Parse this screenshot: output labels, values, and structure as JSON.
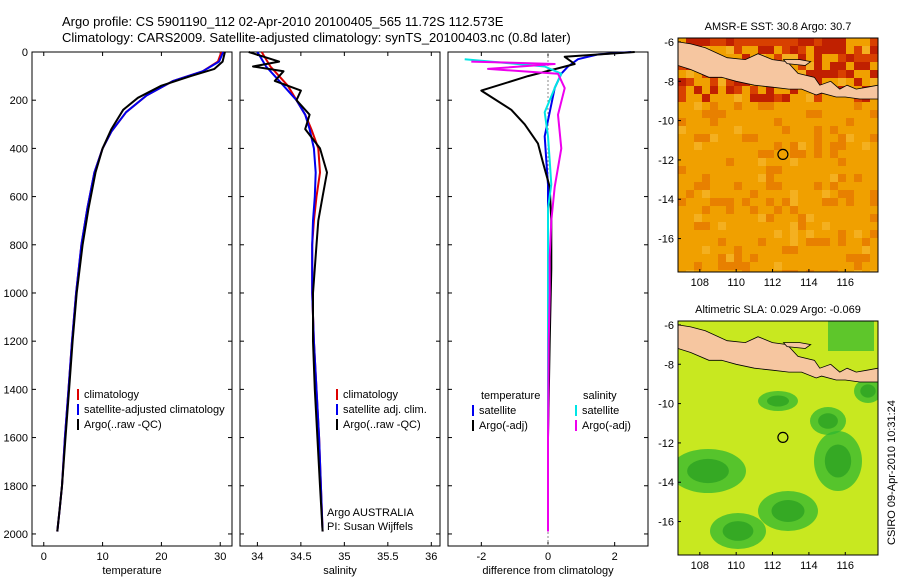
{
  "header": {
    "line1": "Argo profile: CS 5901190_112 02-Apr-2010 20100405_565 11.72S 112.573E",
    "line2": "Climatology: CARS2009. Satellite-adjusted climatology: synTS_20100403.nc (0.8d later)"
  },
  "side_label": "CSIRO 09-Apr-2010 10:31:24",
  "chart_data": [
    {
      "type": "line",
      "panel": "temperature",
      "xlabel": "temperature",
      "ylabel": "",
      "xlim": [
        -2,
        32
      ],
      "ylim": [
        0,
        2050
      ],
      "y_inverted": true,
      "xticks": [
        0,
        10,
        20,
        30
      ],
      "yticks": [
        0,
        200,
        400,
        600,
        800,
        1000,
        1200,
        1400,
        1600,
        1800,
        2000
      ],
      "legend": [
        "climatology",
        "satellite-adjusted climatology",
        "Argo(..raw -QC)"
      ],
      "legend_position": "lower-center",
      "series": [
        {
          "name": "climatology",
          "color": "#dd0000",
          "x": [
            30.2,
            29.6,
            27.0,
            22.0,
            17.5,
            14.0,
            11.5,
            10.0,
            8.6,
            7.4,
            6.4,
            5.5,
            4.8,
            4.2,
            3.6,
            3.1,
            2.7,
            2.3
          ],
          "y": [
            0,
            40,
            80,
            120,
            180,
            250,
            330,
            400,
            500,
            650,
            800,
            1000,
            1200,
            1400,
            1600,
            1800,
            1900,
            1990
          ]
        },
        {
          "name": "satellite-adjusted climatology",
          "color": "#0000ee",
          "x": [
            30.5,
            29.8,
            27.0,
            22.0,
            17.5,
            14.0,
            11.5,
            10.0,
            8.6,
            7.4,
            6.4,
            5.5,
            4.8,
            4.2,
            3.6,
            3.1,
            2.7,
            2.3
          ],
          "y": [
            0,
            40,
            80,
            120,
            180,
            250,
            330,
            400,
            500,
            650,
            800,
            1000,
            1200,
            1400,
            1600,
            1800,
            1900,
            1990
          ]
        },
        {
          "name": "Argo(..raw -QC)",
          "color": "#000000",
          "x": [
            30.8,
            30.4,
            29.0,
            25.0,
            20.0,
            16.0,
            13.5,
            11.5,
            10.0,
            8.8,
            7.6,
            6.6,
            5.6,
            4.9,
            4.3,
            3.7,
            3.1,
            2.7,
            2.3
          ],
          "y": [
            0,
            40,
            70,
            100,
            140,
            190,
            240,
            320,
            400,
            500,
            650,
            800,
            1000,
            1200,
            1400,
            1600,
            1800,
            1900,
            1990
          ]
        }
      ]
    },
    {
      "type": "line",
      "panel": "salinity",
      "xlabel": "salinity",
      "ylabel": "",
      "xlim": [
        33.8,
        36.1
      ],
      "ylim": [
        0,
        2050
      ],
      "y_inverted": true,
      "xticks": [
        34,
        34.5,
        35,
        35.5,
        36
      ],
      "yticks": [
        0,
        200,
        400,
        600,
        800,
        1000,
        1200,
        1400,
        1600,
        1800,
        2000
      ],
      "legend": [
        "climatology",
        "satellite adj. clim.",
        "Argo(..raw -QC)"
      ],
      "legend_position": "lower-right",
      "annotation": [
        "Argo AUSTRALIA",
        "PI: Susan Wijffels"
      ],
      "series": [
        {
          "name": "climatology",
          "color": "#dd0000",
          "x": [
            34.05,
            34.15,
            34.25,
            34.35,
            34.45,
            34.55,
            34.62,
            34.7,
            34.72,
            34.68,
            34.65,
            34.63,
            34.63,
            34.65,
            34.68,
            34.71,
            34.73,
            34.75
          ],
          "y": [
            0,
            60,
            100,
            140,
            200,
            260,
            320,
            400,
            500,
            600,
            700,
            800,
            1000,
            1200,
            1400,
            1600,
            1800,
            1990
          ]
        },
        {
          "name": "satellite adj. clim.",
          "color": "#0000ee",
          "x": [
            34.0,
            34.1,
            34.2,
            34.3,
            34.45,
            34.55,
            34.6,
            34.65,
            34.67,
            34.66,
            34.64,
            34.63,
            34.63,
            34.65,
            34.68,
            34.71,
            34.73,
            34.75
          ],
          "y": [
            0,
            60,
            100,
            140,
            200,
            260,
            320,
            400,
            500,
            600,
            700,
            800,
            1000,
            1200,
            1400,
            1600,
            1800,
            1990
          ]
        },
        {
          "name": "Argo(..raw -QC)",
          "color": "#000000",
          "x": [
            33.9,
            34.25,
            33.95,
            34.3,
            34.2,
            34.5,
            34.45,
            34.6,
            34.55,
            34.72,
            34.8,
            34.75,
            34.7,
            34.68,
            34.64,
            34.64,
            34.66,
            34.69,
            34.72,
            34.75
          ],
          "y": [
            0,
            40,
            60,
            80,
            120,
            160,
            200,
            260,
            320,
            400,
            500,
            600,
            700,
            800,
            1000,
            1200,
            1400,
            1600,
            1800,
            1990
          ]
        }
      ]
    },
    {
      "type": "line",
      "panel": "difference",
      "xlabel": "difference from climatology",
      "ylabel": "",
      "xlim": [
        -3,
        3
      ],
      "ylim": [
        0,
        2050
      ],
      "y_inverted": true,
      "xticks": [
        -2,
        0,
        2
      ],
      "yticks": [
        0,
        200,
        400,
        600,
        800,
        1000,
        1200,
        1400,
        1600,
        1800,
        2000
      ],
      "legend_titles": [
        "temperature",
        "salinity"
      ],
      "legend": [
        "satellite",
        "Argo(-adj)",
        "satellite",
        "Argo(-adj)"
      ],
      "legend_position": "lower-center",
      "series": [
        {
          "name": "temperature satellite",
          "color": "#0000ee",
          "x": [
            2.5,
            1.5,
            0.9,
            0.6,
            0.4,
            0.2,
            0.05,
            -0.1,
            -0.05,
            0.0,
            0.0,
            0.0,
            0.0,
            0.0,
            0.0
          ],
          "y": [
            0,
            10,
            30,
            60,
            90,
            150,
            250,
            350,
            450,
            550,
            700,
            900,
            1200,
            1600,
            1990
          ]
        },
        {
          "name": "temperature Argo(-adj)",
          "color": "#000000",
          "x": [
            2.6,
            0.5,
            0.8,
            -0.6,
            -2.0,
            -1.1,
            -0.7,
            -0.3,
            -0.15,
            0.05,
            0.1,
            0.1,
            0.05,
            0.0,
            0.0
          ],
          "y": [
            0,
            20,
            50,
            100,
            160,
            240,
            300,
            380,
            460,
            560,
            700,
            900,
            1200,
            1600,
            1990
          ]
        },
        {
          "name": "salinity satellite",
          "color": "#00e5e5",
          "x": [
            -2.5,
            -0.1,
            0.4,
            0.2,
            -0.1,
            0.0,
            0.05,
            0.1,
            0.0,
            0.0,
            0.0,
            0.0,
            0.0,
            0.0
          ],
          "y": [
            30,
            60,
            90,
            150,
            250,
            350,
            450,
            550,
            650,
            800,
            1000,
            1300,
            1700,
            1990
          ]
        },
        {
          "name": "salinity Argo(-adj)",
          "color": "#ee00ee",
          "x": [
            -2.3,
            0.2,
            -1.8,
            0.3,
            0.5,
            0.3,
            0.4,
            0.2,
            0.1,
            0.05,
            0.05,
            0.02,
            0.0,
            0.0
          ],
          "y": [
            40,
            50,
            70,
            90,
            150,
            260,
            400,
            560,
            700,
            850,
            1000,
            1200,
            1600,
            1990
          ]
        }
      ]
    },
    {
      "type": "heatmap",
      "panel": "sst_map",
      "title": "AMSR-E SST: 30.8 Argo: 30.7",
      "xlim": [
        106.8,
        117.8
      ],
      "ylim": [
        -17.7,
        -5.8
      ],
      "xticks": [
        108,
        110,
        112,
        114,
        116
      ],
      "yticks": [
        -6,
        -8,
        -10,
        -12,
        -14,
        -16
      ],
      "argo_position": [
        112.57,
        -11.72
      ],
      "colors": {
        "base": "#f0a000",
        "warm": "#c02000",
        "land": "#f6c6a0"
      }
    },
    {
      "type": "heatmap",
      "panel": "sla_map",
      "title": "Altimetric SLA: 0.029 Argo: -0.069",
      "xlim": [
        106.8,
        117.8
      ],
      "ylim": [
        -17.7,
        -5.8
      ],
      "xticks": [
        108,
        110,
        112,
        114,
        116
      ],
      "yticks": [
        -6,
        -8,
        -10,
        -12,
        -14,
        -16
      ],
      "argo_position": [
        112.57,
        -11.72
      ],
      "colors": {
        "base": "#c8e820",
        "low": "#30b830",
        "land": "#f6c6a0"
      }
    }
  ]
}
